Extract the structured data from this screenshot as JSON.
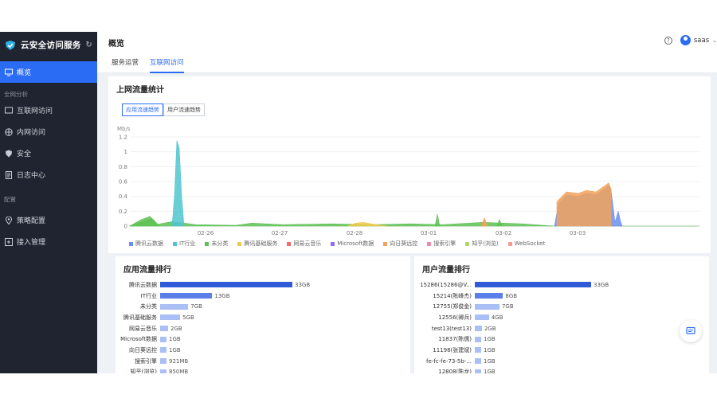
{
  "brand": {
    "name": "云安全访问服务"
  },
  "sidebar": {
    "items": [
      {
        "label": "概览",
        "active": true
      },
      {
        "group": "全网分析"
      },
      {
        "label": "互联网访问"
      },
      {
        "label": "内网访问"
      },
      {
        "label": "安全"
      },
      {
        "label": "日志中心"
      },
      {
        "group": "配置"
      },
      {
        "label": "策略配置"
      },
      {
        "label": "接入管理"
      }
    ]
  },
  "header": {
    "title": "概览",
    "tabs": [
      {
        "label": "服务运营"
      },
      {
        "label": "互联网访问",
        "active": true
      }
    ],
    "user": "saas"
  },
  "traffic": {
    "title": "上网流量统计",
    "toggle": [
      "应用流速趋势",
      "用户流速趋势"
    ],
    "chart_data": {
      "type": "area",
      "ylabel": "Mb/s",
      "ylim": [
        0,
        1.2
      ],
      "yticks": [
        "1.2",
        "1",
        "0.8",
        "0.6",
        "0.4",
        "0.2",
        "0"
      ],
      "xticks": [
        "02-26",
        "02-27",
        "02-28",
        "03-01",
        "03-02",
        "03-03"
      ],
      "grid": true,
      "legend_position": "bottom",
      "series": [
        {
          "name": "腾讯云数据",
          "color": "#6b8ff0"
        },
        {
          "name": "IT行业",
          "color": "#4fc5cf"
        },
        {
          "name": "未分类",
          "color": "#5dc153"
        },
        {
          "name": "腾讯基础服务",
          "color": "#f2c94c"
        },
        {
          "name": "网易云音乐",
          "color": "#f26b6b"
        },
        {
          "name": "Microsoft数据",
          "color": "#8e6de8"
        },
        {
          "name": "向日葵远控",
          "color": "#f2a25c"
        },
        {
          "name": "搜索引擎",
          "color": "#f08aa8"
        },
        {
          "name": "知乎(浏览)",
          "color": "#b5d46b"
        },
        {
          "name": "WebSocket",
          "color": "#f59a8c"
        }
      ]
    }
  },
  "app_rank": {
    "title": "应用流量排行",
    "chart_data": {
      "type": "bar",
      "categories": [
        "腾讯云数据",
        "IT行业",
        "未分类",
        "腾讯基础服务",
        "网易云音乐",
        "Microsoft数据",
        "向日葵远控",
        "搜索引擎",
        "知乎(浏览)"
      ],
      "values_gb": [
        33,
        13,
        7,
        5,
        2,
        1,
        1,
        0.921,
        0.85
      ],
      "labels": [
        "33GB",
        "13GB",
        "7GB",
        "5GB",
        "2GB",
        "1GB",
        "1GB",
        "921MB",
        "850MB"
      ]
    }
  },
  "user_rank": {
    "title": "用户流量排行",
    "chart_data": {
      "type": "bar",
      "categories": [
        "15286(15286@V...",
        "15214(陈峰杰)",
        "12755(郑俊金)",
        "12556(卿兵)",
        "test13(test13)",
        "11837(陈儒)",
        "11198(张建斌)",
        "fe-fc-fe-73-5b-...",
        "12808(陈龙)"
      ],
      "values_gb": [
        33,
        8,
        7,
        4,
        2,
        1,
        1,
        1,
        1
      ],
      "labels": [
        "33GB",
        "8GB",
        "7GB",
        "4GB",
        "2GB",
        "1GB",
        "1GB",
        "1GB",
        "1GB"
      ]
    }
  },
  "colors": {
    "accent": "#2b6cf5",
    "sidebar": "#1f2430",
    "bar_primary": "#2f5bd8",
    "bar_secondary": "#a9bff5"
  }
}
